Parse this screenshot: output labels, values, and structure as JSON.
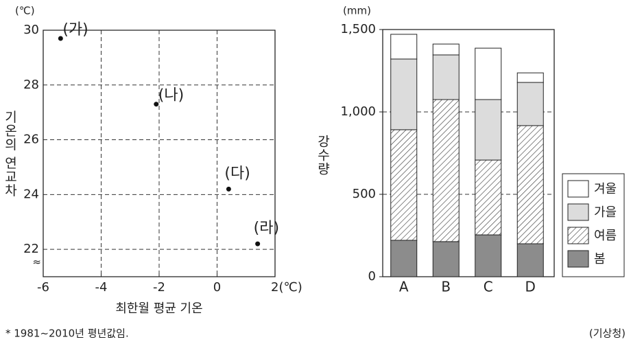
{
  "chart_data": [
    {
      "type": "scatter",
      "y_unit": "(℃)",
      "ylabel": "기온의 연교차",
      "xlabel": "최한월 평균 기온",
      "x": [
        -5.4,
        -2.1,
        0.4,
        1.4
      ],
      "y": [
        29.7,
        27.3,
        24.2,
        22.2
      ],
      "labels": [
        "(가)",
        "(나)",
        "(다)",
        "(라)"
      ],
      "color": "#111111",
      "xlim": [
        -6,
        2
      ],
      "xticks": [
        -6,
        -4,
        -2,
        0,
        {
          "value": 2,
          "label": "2(℃)"
        }
      ],
      "ylim": [
        21,
        30
      ],
      "yticks": [
        22,
        24,
        26,
        28,
        30
      ],
      "grid": true
    },
    {
      "type": "stacked_bar",
      "y_unit": "(mm)",
      "ylabel": "강수량",
      "categories": [
        "A",
        "B",
        "C",
        "D"
      ],
      "series": [
        {
          "name": "봄",
          "color": "#8c8c8c",
          "values": [
            221,
            213,
            254,
            200
          ]
        },
        {
          "name": "여름",
          "color": "#ffffff",
          "pattern": "hatch",
          "values": [
            671,
            862,
            454,
            717
          ]
        },
        {
          "name": "가을",
          "color": "#dcdcdc",
          "values": [
            429,
            271,
            367,
            262
          ]
        },
        {
          "name": "겨울",
          "color": "#ffffff",
          "values": [
            150,
            66,
            312,
            58
          ]
        }
      ],
      "ylim": [
        0,
        1500
      ],
      "yticks": [
        0,
        500,
        {
          "value": 1000,
          "label": "1,000"
        },
        {
          "value": 1500,
          "label": "1,500"
        }
      ],
      "grid": true,
      "legend": "right"
    }
  ],
  "footnote": "* 1981~2010년 평년값임.",
  "source": "(기상청)"
}
